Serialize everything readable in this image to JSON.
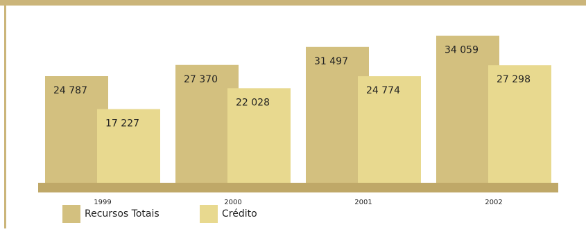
{
  "chart_data": {
    "type": "bar",
    "categories": [
      "1999",
      "2000",
      "2001",
      "2002"
    ],
    "series": [
      {
        "name": "Recursos Totais",
        "values": [
          24787,
          27370,
          31497,
          34059
        ],
        "labels": [
          "24 787",
          "27 370",
          "31 497",
          "34 059"
        ]
      },
      {
        "name": "Crédito",
        "values": [
          17227,
          22028,
          24774,
          27298
        ],
        "labels": [
          "17 227",
          "22 028",
          "24 774",
          "27 298"
        ]
      }
    ],
    "title": "",
    "xlabel": "",
    "ylabel": "",
    "ylim": [
      0,
      37500
    ],
    "grid": false,
    "legend": "bottom-left"
  },
  "colors": {
    "recursos": "#d3c07f",
    "credito": "#e8d98f",
    "frame": "#cbb57a",
    "base": "#bfa868"
  }
}
